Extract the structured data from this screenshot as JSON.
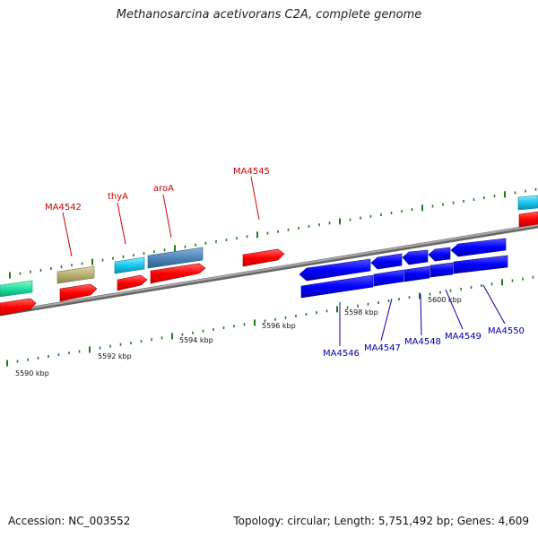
{
  "title": "Methanosarcina acetivorans C2A, complete genome",
  "footer": {
    "accession": "Accession: NC_003552",
    "summary": "Topology: circular; Length: 5,751,492 bp; Genes: 4,609"
  },
  "scale_ticks": [
    "5590 kbp",
    "5592 kbp",
    "5594 kbp",
    "5596 kbp",
    "5598 kbp",
    "5600 kbp"
  ],
  "genes": {
    "forward_labels": [
      "MA4542",
      "thyA",
      "aroA",
      "MA4545"
    ],
    "reverse_labels": [
      "MA4546",
      "MA4547",
      "MA4548",
      "MA4549",
      "MA4550"
    ]
  },
  "colors": {
    "backbone": "#808080",
    "tick": "#1f7a1f",
    "forward_label": "#cc0000",
    "reverse_label": "#0000aa",
    "cds_red": "#ff0000",
    "cds_blue": "#0000ff",
    "cds_cyan": "#18c8f0",
    "cds_steel": "#4f86b8",
    "cds_olive": "#b8b070",
    "cds_teal": "#20e0a0"
  }
}
